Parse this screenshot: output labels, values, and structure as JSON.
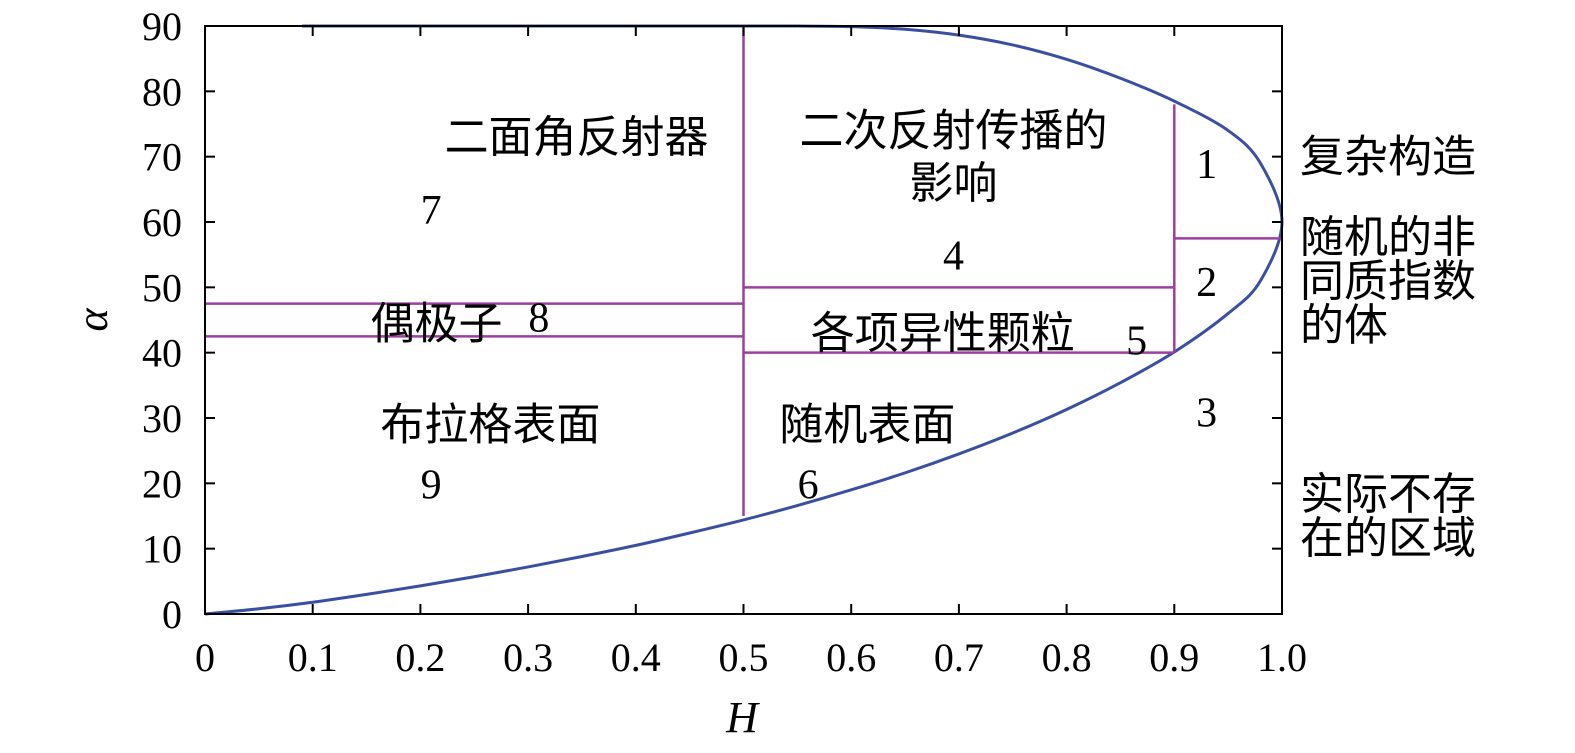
{
  "chart_data": {
    "type": "line",
    "xlabel": "H",
    "ylabel": "α",
    "xlim": [
      0,
      1.0
    ],
    "ylim": [
      0,
      90
    ],
    "x_ticks": [
      "0",
      "0.1",
      "0.2",
      "0.3",
      "0.4",
      "0.5",
      "0.6",
      "0.7",
      "0.8",
      "0.9",
      "1.0"
    ],
    "y_ticks": [
      "0",
      "10",
      "20",
      "30",
      "40",
      "50",
      "60",
      "70",
      "80",
      "90"
    ],
    "boundary_color": "#3a4fa0",
    "partition_color": "#9b3fa0",
    "boundary_curve": {
      "x": [
        0,
        0.05,
        0.1,
        0.15,
        0.2,
        0.25,
        0.3,
        0.35,
        0.4,
        0.45,
        0.5,
        0.55,
        0.6,
        0.65,
        0.7,
        0.75,
        0.8,
        0.85,
        0.9,
        0.95,
        0.98,
        1.0,
        0.98,
        0.95,
        0.9,
        0.85,
        0.8,
        0.75,
        0.7,
        0.65,
        0.6,
        0.55
      ],
      "y": [
        0,
        0.8,
        1.8,
        3.0,
        4.3,
        5.7,
        7.2,
        8.8,
        10.5,
        12.4,
        14.4,
        16.6,
        19.0,
        21.6,
        24.5,
        27.7,
        31.3,
        35.4,
        40.1,
        46.0,
        51.0,
        60.0,
        69.0,
        74.0,
        78.5,
        82.0,
        84.9,
        87.1,
        88.6,
        89.5,
        89.9,
        90.0
      ]
    },
    "top_boundary": {
      "x": [
        0.09,
        0.55
      ],
      "y": [
        90,
        90
      ]
    },
    "partitions": [
      {
        "x": [
          0.5,
          0.5
        ],
        "y": [
          15,
          90
        ]
      },
      {
        "x": [
          0.9,
          0.9
        ],
        "y": [
          40,
          78
        ]
      },
      {
        "x": [
          0,
          0.5
        ],
        "y": [
          47.5,
          47.5
        ]
      },
      {
        "x": [
          0,
          0.5
        ],
        "y": [
          42.5,
          42.5
        ]
      },
      {
        "x": [
          0.5,
          0.9
        ],
        "y": [
          50,
          50
        ]
      },
      {
        "x": [
          0.5,
          0.9
        ],
        "y": [
          40,
          40
        ]
      },
      {
        "x": [
          0.9,
          1.0
        ],
        "y": [
          57.5,
          57.5
        ]
      }
    ],
    "region_labels": [
      {
        "text": "二面角反射器",
        "x": 0.345,
        "y": 73
      },
      {
        "text": "7",
        "x": 0.21,
        "y": 62
      },
      {
        "text": "二次反射传播的",
        "x": 0.695,
        "y": 74
      },
      {
        "text": "影响",
        "x": 0.695,
        "y": 66
      },
      {
        "text": "4",
        "x": 0.695,
        "y": 55
      },
      {
        "text": "1",
        "x": 0.93,
        "y": 69
      },
      {
        "text": "2",
        "x": 0.93,
        "y": 51
      },
      {
        "text": "3",
        "x": 0.93,
        "y": 31
      },
      {
        "text": "偶极子",
        "x": 0.215,
        "y": 44.5
      },
      {
        "text": "8",
        "x": 0.31,
        "y": 45.5
      },
      {
        "text": "各项异性颗粒",
        "x": 0.685,
        "y": 43
      },
      {
        "text": "5",
        "x": 0.865,
        "y": 42
      },
      {
        "text": "布拉格表面",
        "x": 0.265,
        "y": 29
      },
      {
        "text": "9",
        "x": 0.21,
        "y": 20
      },
      {
        "text": "随机表面",
        "x": 0.615,
        "y": 29
      },
      {
        "text": "6",
        "x": 0.56,
        "y": 20
      }
    ],
    "side_labels": [
      {
        "lines": [
          "复杂构造"
        ],
        "y": 70
      },
      {
        "lines": [
          "随机的非",
          "同质指数",
          "的体"
        ],
        "y": 51
      },
      {
        "lines": [
          "实际不存",
          "在的区域"
        ],
        "y": 15
      }
    ]
  }
}
